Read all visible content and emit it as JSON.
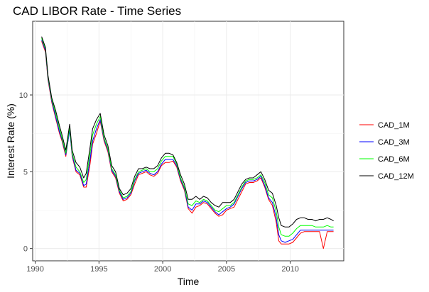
{
  "chart_data": {
    "type": "line",
    "title": "CAD LIBOR Rate - Time Series",
    "xlabel": "Time",
    "ylabel": "Interest Rate (%)",
    "xlim": [
      1989.8,
      2014.2
    ],
    "ylim": [
      -0.8,
      14.8
    ],
    "x_ticks": [
      1990,
      1995,
      2000,
      2005,
      2010
    ],
    "x_tick_labels": [
      "1990",
      "1995",
      "2000",
      "2005",
      "2010"
    ],
    "y_ticks": [
      0,
      5,
      10
    ],
    "y_tick_labels": [
      "0",
      "5",
      "10"
    ],
    "grid": true,
    "legend_position": "right",
    "x": [
      1990.5,
      1990.8,
      1991.0,
      1991.3,
      1991.6,
      1991.9,
      1992.1,
      1992.4,
      1992.7,
      1992.9,
      1993.2,
      1993.5,
      1993.8,
      1994.0,
      1994.3,
      1994.5,
      1994.8,
      1995.1,
      1995.4,
      1995.7,
      1996.0,
      1996.3,
      1996.6,
      1996.9,
      1997.2,
      1997.5,
      1997.8,
      1998.1,
      1998.4,
      1998.7,
      1999.0,
      1999.3,
      1999.6,
      1999.9,
      2000.2,
      2000.5,
      2000.8,
      2001.1,
      2001.4,
      2001.7,
      2002.0,
      2002.3,
      2002.6,
      2002.9,
      2003.2,
      2003.5,
      2003.8,
      2004.1,
      2004.4,
      2004.7,
      2005.0,
      2005.3,
      2005.6,
      2005.9,
      2006.2,
      2006.5,
      2006.8,
      2007.1,
      2007.4,
      2007.7,
      2008.0,
      2008.3,
      2008.6,
      2008.9,
      2009.1,
      2009.3,
      2009.6,
      2009.9,
      2010.2,
      2010.5,
      2010.8,
      2011.1,
      2011.4,
      2011.7,
      2012.0,
      2012.3,
      2012.6,
      2012.9,
      2013.2,
      2013.4
    ],
    "series": [
      {
        "name": "CAD_1M",
        "color": "#ff0000",
        "values": [
          13.5,
          12.8,
          11.0,
          9.5,
          8.5,
          7.5,
          7.0,
          6.0,
          7.8,
          6.0,
          5.0,
          4.8,
          4.0,
          4.0,
          5.5,
          6.8,
          7.5,
          8.3,
          7.0,
          6.3,
          5.0,
          4.6,
          3.6,
          3.1,
          3.2,
          3.5,
          4.2,
          4.8,
          4.9,
          5.0,
          4.8,
          4.7,
          4.9,
          5.4,
          5.6,
          5.6,
          5.7,
          5.3,
          4.4,
          3.8,
          2.6,
          2.3,
          2.7,
          2.8,
          3.0,
          2.9,
          2.6,
          2.3,
          2.1,
          2.2,
          2.5,
          2.6,
          2.7,
          3.2,
          3.7,
          4.2,
          4.3,
          4.3,
          4.4,
          4.6,
          4.0,
          3.2,
          2.8,
          1.7,
          0.5,
          0.3,
          0.3,
          0.3,
          0.4,
          0.7,
          1.0,
          1.1,
          1.1,
          1.1,
          1.1,
          1.1,
          0.0,
          1.1,
          1.1,
          1.1
        ]
      },
      {
        "name": "CAD_3M",
        "color": "#0000ff",
        "values": [
          13.6,
          12.9,
          11.1,
          9.6,
          8.6,
          7.6,
          7.1,
          6.1,
          7.7,
          6.1,
          5.1,
          4.9,
          4.1,
          4.2,
          5.8,
          7.0,
          7.8,
          8.4,
          7.1,
          6.4,
          5.1,
          4.7,
          3.7,
          3.2,
          3.3,
          3.6,
          4.4,
          4.9,
          5.0,
          5.1,
          4.9,
          4.8,
          5.0,
          5.5,
          5.8,
          5.8,
          5.8,
          5.4,
          4.5,
          3.9,
          2.7,
          2.5,
          2.9,
          2.9,
          3.1,
          3.0,
          2.7,
          2.4,
          2.2,
          2.4,
          2.6,
          2.7,
          2.9,
          3.4,
          3.9,
          4.3,
          4.4,
          4.4,
          4.5,
          4.7,
          4.1,
          3.3,
          3.0,
          2.0,
          0.9,
          0.5,
          0.4,
          0.5,
          0.6,
          0.9,
          1.2,
          1.2,
          1.2,
          1.2,
          1.2,
          1.2,
          1.2,
          1.2,
          1.2,
          1.2
        ]
      },
      {
        "name": "CAD_6M",
        "color": "#00ff00",
        "values": [
          13.7,
          13.0,
          11.2,
          9.7,
          8.8,
          7.8,
          7.2,
          6.2,
          7.9,
          6.2,
          5.3,
          5.0,
          4.3,
          4.5,
          6.2,
          7.4,
          8.1,
          8.6,
          7.2,
          6.5,
          5.2,
          4.8,
          3.8,
          3.3,
          3.4,
          3.7,
          4.5,
          5.0,
          5.1,
          5.2,
          5.0,
          5.0,
          5.2,
          5.7,
          6.0,
          6.0,
          6.0,
          5.5,
          4.6,
          4.0,
          2.9,
          2.8,
          3.1,
          3.0,
          3.2,
          3.1,
          2.8,
          2.5,
          2.4,
          2.6,
          2.8,
          2.8,
          3.0,
          3.5,
          4.0,
          4.4,
          4.5,
          4.5,
          4.6,
          4.8,
          4.3,
          3.5,
          3.3,
          2.4,
          1.4,
          0.9,
          0.8,
          0.8,
          1.0,
          1.3,
          1.5,
          1.5,
          1.5,
          1.5,
          1.4,
          1.4,
          1.4,
          1.5,
          1.4,
          1.4
        ]
      },
      {
        "name": "CAD_12M",
        "color": "#000000",
        "values": [
          13.8,
          13.1,
          11.3,
          9.8,
          9.0,
          8.0,
          7.4,
          6.4,
          8.1,
          6.4,
          5.6,
          5.3,
          4.6,
          4.9,
          6.6,
          7.8,
          8.4,
          8.8,
          7.4,
          6.7,
          5.4,
          5.0,
          3.9,
          3.5,
          3.6,
          3.9,
          4.7,
          5.2,
          5.2,
          5.3,
          5.2,
          5.2,
          5.4,
          5.9,
          6.2,
          6.2,
          6.1,
          5.6,
          4.8,
          4.2,
          3.2,
          3.2,
          3.4,
          3.2,
          3.4,
          3.3,
          3.0,
          2.8,
          2.7,
          3.0,
          3.0,
          3.0,
          3.2,
          3.7,
          4.2,
          4.5,
          4.6,
          4.6,
          4.8,
          5.0,
          4.5,
          3.8,
          3.6,
          2.8,
          2.0,
          1.5,
          1.4,
          1.4,
          1.6,
          1.9,
          2.0,
          2.0,
          1.9,
          1.9,
          1.8,
          1.9,
          1.9,
          2.0,
          1.9,
          1.8
        ]
      }
    ]
  }
}
